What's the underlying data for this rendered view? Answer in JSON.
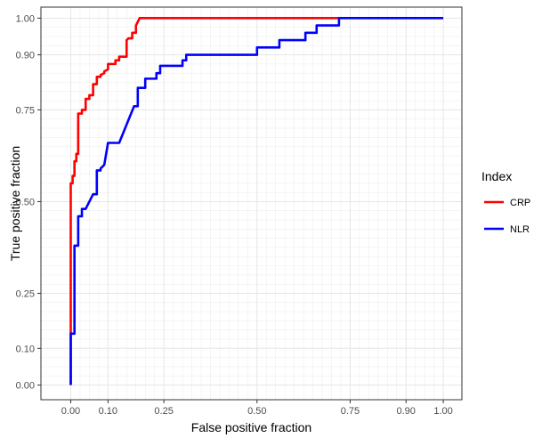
{
  "chart_data": {
    "type": "line",
    "xlabel": "False positive fraction",
    "ylabel": "True positive fraction",
    "xlim": [
      -0.08,
      1.05
    ],
    "ylim": [
      -0.04,
      1.03
    ],
    "x_ticks": [
      0.0,
      0.1,
      0.25,
      0.5,
      0.75,
      0.9,
      1.0
    ],
    "x_tick_labels": [
      "0.00",
      "0.10",
      "0.25",
      "0.50",
      "0.75",
      "0.90",
      "1.00"
    ],
    "y_ticks": [
      0.0,
      0.1,
      0.25,
      0.5,
      0.75,
      0.9,
      1.0
    ],
    "y_tick_labels": [
      "0.00",
      "0.10",
      "0.25",
      "0.50",
      "0.75",
      "0.90",
      "1.00"
    ],
    "grid": true,
    "legend": {
      "title": "Index",
      "position": "right"
    },
    "series": [
      {
        "name": "CRP",
        "color": "#ff0000",
        "points": [
          [
            0.0,
            0.0
          ],
          [
            0.0,
            0.14
          ],
          [
            0.0,
            0.55
          ],
          [
            0.005,
            0.55
          ],
          [
            0.005,
            0.57
          ],
          [
            0.01,
            0.57
          ],
          [
            0.01,
            0.61
          ],
          [
            0.015,
            0.61
          ],
          [
            0.015,
            0.63
          ],
          [
            0.02,
            0.63
          ],
          [
            0.02,
            0.74
          ],
          [
            0.03,
            0.74
          ],
          [
            0.03,
            0.75
          ],
          [
            0.04,
            0.75
          ],
          [
            0.04,
            0.78
          ],
          [
            0.05,
            0.78
          ],
          [
            0.05,
            0.79
          ],
          [
            0.06,
            0.79
          ],
          [
            0.06,
            0.82
          ],
          [
            0.07,
            0.82
          ],
          [
            0.07,
            0.84
          ],
          [
            0.08,
            0.84
          ],
          [
            0.08,
            0.845
          ],
          [
            0.09,
            0.85
          ],
          [
            0.09,
            0.855
          ],
          [
            0.1,
            0.86
          ],
          [
            0.1,
            0.875
          ],
          [
            0.12,
            0.875
          ],
          [
            0.12,
            0.885
          ],
          [
            0.13,
            0.885
          ],
          [
            0.13,
            0.895
          ],
          [
            0.15,
            0.895
          ],
          [
            0.15,
            0.94
          ],
          [
            0.155,
            0.945
          ],
          [
            0.165,
            0.945
          ],
          [
            0.165,
            0.96
          ],
          [
            0.175,
            0.96
          ],
          [
            0.175,
            0.98
          ],
          [
            0.185,
            1.0
          ],
          [
            0.72,
            1.0
          ]
        ]
      },
      {
        "name": "NLR",
        "color": "#0000ff",
        "points": [
          [
            0.0,
            0.0
          ],
          [
            0.0,
            0.14
          ],
          [
            0.01,
            0.14
          ],
          [
            0.01,
            0.38
          ],
          [
            0.02,
            0.38
          ],
          [
            0.02,
            0.46
          ],
          [
            0.03,
            0.46
          ],
          [
            0.03,
            0.48
          ],
          [
            0.04,
            0.48
          ],
          [
            0.05,
            0.5
          ],
          [
            0.06,
            0.52
          ],
          [
            0.07,
            0.52
          ],
          [
            0.07,
            0.585
          ],
          [
            0.08,
            0.585
          ],
          [
            0.08,
            0.59
          ],
          [
            0.09,
            0.6
          ],
          [
            0.1,
            0.66
          ],
          [
            0.13,
            0.66
          ],
          [
            0.17,
            0.76
          ],
          [
            0.18,
            0.76
          ],
          [
            0.18,
            0.81
          ],
          [
            0.2,
            0.81
          ],
          [
            0.2,
            0.835
          ],
          [
            0.23,
            0.835
          ],
          [
            0.23,
            0.85
          ],
          [
            0.24,
            0.85
          ],
          [
            0.24,
            0.87
          ],
          [
            0.3,
            0.87
          ],
          [
            0.3,
            0.885
          ],
          [
            0.31,
            0.885
          ],
          [
            0.31,
            0.9
          ],
          [
            0.5,
            0.9
          ],
          [
            0.5,
            0.92
          ],
          [
            0.56,
            0.92
          ],
          [
            0.56,
            0.94
          ],
          [
            0.63,
            0.94
          ],
          [
            0.63,
            0.96
          ],
          [
            0.66,
            0.96
          ],
          [
            0.66,
            0.98
          ],
          [
            0.72,
            0.98
          ],
          [
            0.72,
            1.0
          ],
          [
            1.0,
            1.0
          ]
        ]
      }
    ]
  }
}
